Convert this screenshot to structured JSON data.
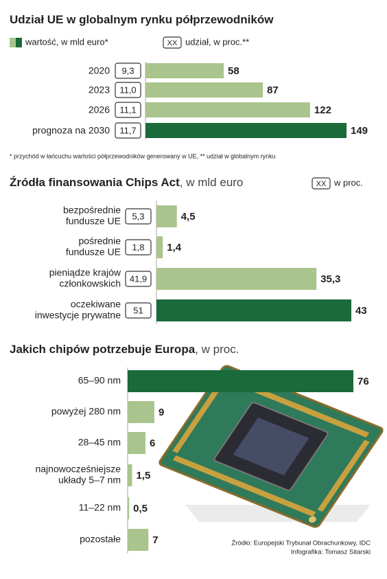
{
  "chart_data": [
    {
      "type": "bar",
      "title": "Udział UE w globalnym rynku półprzewodników",
      "value_name": "wartość, w mld euro*",
      "categories": [
        "2020",
        "2023",
        "2026",
        "prognoza na 2030"
      ],
      "values": [
        58,
        87,
        122,
        149
      ],
      "colors": [
        "#a9c48c",
        "#a9c48c",
        "#a9c48c",
        "#1b6a3a"
      ],
      "share": {
        "name": "udział, w proc.**",
        "box_label": "XX",
        "values": [
          9.3,
          11.0,
          11.1,
          11.7
        ],
        "value_labels": [
          "9,3",
          "11,0",
          "11,1",
          "11,7"
        ]
      },
      "footnote": "* przychód w łańcuchu wartości półprzewodników generowany w UE, ** udział w globalnym rynku"
    },
    {
      "type": "bar",
      "title": "Źródła finansowania Chips Act",
      "title_suffix": ", w mld euro",
      "categories": [
        [
          "bezpośrednie",
          "fundusze UE"
        ],
        [
          "pośrednie",
          "fundusze UE"
        ],
        [
          "pieniądze krajów",
          "członkowskich"
        ],
        [
          "oczekiwane",
          "inwestycje prywatne"
        ]
      ],
      "values": [
        4.5,
        1.4,
        35.3,
        43
      ],
      "value_labels": [
        "4,5",
        "1,4",
        "35,3",
        "43"
      ],
      "colors": [
        "#a9c48c",
        "#a9c48c",
        "#a9c48c",
        "#1b6a3a"
      ],
      "share": {
        "name": "w proc.",
        "box_label": "XX",
        "values": [
          5.3,
          1.8,
          41.9,
          51
        ],
        "value_labels": [
          "5,3",
          "1,8",
          "41,9",
          "51"
        ]
      }
    },
    {
      "type": "bar",
      "title": "Jakich chipów potrzebuje Europa",
      "title_suffix": ", w proc.",
      "categories": [
        [
          "65–90 nm"
        ],
        [
          "powyżej 280 nm"
        ],
        [
          "28–45 nm"
        ],
        [
          "najnowocześniejsze",
          "układy 5–7 nm"
        ],
        [
          "11–22 nm"
        ],
        [
          "pozostałe"
        ]
      ],
      "values": [
        76,
        9,
        6,
        1.5,
        0.5,
        7
      ],
      "value_labels": [
        "76",
        "9",
        "6",
        "1,5",
        "0,5",
        "7"
      ],
      "colors": [
        "#1b6a3a",
        "#a9c48c",
        "#a9c48c",
        "#a9c48c",
        "#a9c48c",
        "#a9c48c"
      ],
      "source": "Źródło: Europejski Trybunał Obrachunkowy, IDC",
      "credit": "Infografika: Tomasz Sitarski"
    }
  ]
}
